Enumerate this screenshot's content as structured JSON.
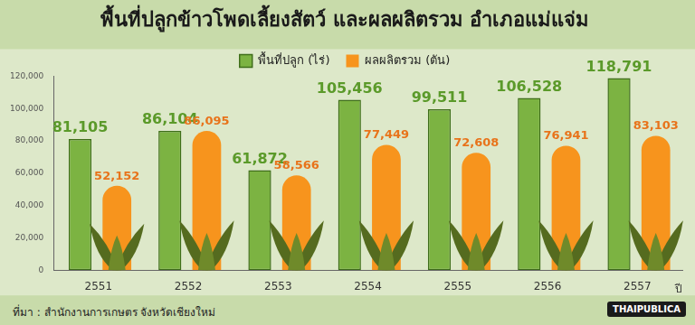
{
  "chart_data": {
    "type": "bar",
    "title": "พื้นที่ปลูกข้าวโพดเลี้ยงสัตว์ และผลผลิตรวม อำเภอแม่แจ่ม",
    "x_label": "ปี",
    "source": "ที่มา : สำนักงานการเกษตร จังหวัดเชียงใหม่",
    "logo": "THAIPUBLICA",
    "categories": [
      "2551",
      "2552",
      "2553",
      "2554",
      "2555",
      "2556",
      "2557"
    ],
    "series": [
      {
        "name": "พื้นที่ปลูก (ไร่)",
        "color": "#7cb342",
        "values": [
          81105,
          86104,
          61872,
          105456,
          99511,
          106528,
          118791
        ],
        "value_labels": [
          "81,105",
          "86,104",
          "61,872",
          "105,456",
          "99,511",
          "106,528",
          "118,791"
        ]
      },
      {
        "name": "ผลผลิตรวม (ตัน)",
        "color": "#f7941d",
        "values": [
          52152,
          86095,
          58566,
          77449,
          72608,
          76941,
          83103
        ],
        "value_labels": [
          "52,152",
          "86,095",
          "58,566",
          "77,449",
          "72,608",
          "76,941",
          "83,103"
        ]
      }
    ],
    "ylim": [
      0,
      120000
    ],
    "yticks": [
      0,
      {
        "value": 20000,
        "label": "20,000"
      },
      {
        "value": 40000,
        "label": "40,000"
      },
      {
        "value": 60000,
        "label": "60,000"
      },
      {
        "value": 80000,
        "label": "80,000"
      },
      {
        "value": 100000,
        "label": "100,000"
      },
      {
        "value": 120000,
        "label": "120,000"
      }
    ],
    "grid": false,
    "legend": "top",
    "data_labels": true
  }
}
